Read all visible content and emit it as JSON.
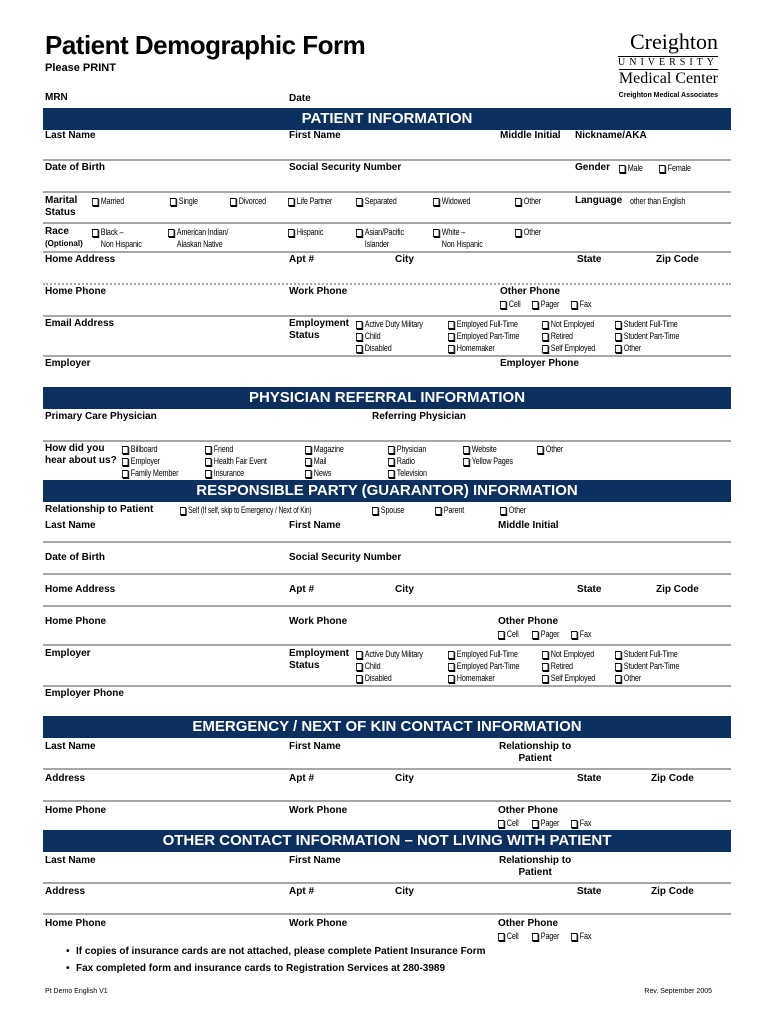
{
  "header": {
    "title": "Patient Demographic Form",
    "subtitle": "Please PRINT",
    "mrn": "MRN",
    "date": "Date",
    "logo": {
      "line1": "Creighton",
      "line2": "UNIVERSITY",
      "line3": "Medical Center",
      "line4": "Creighton Medical Associates"
    }
  },
  "patient": {
    "title": "PATIENT INFORMATION",
    "last_name": "Last Name",
    "first_name": "First Name",
    "middle_initial": "Middle Initial",
    "nickname": "Nickname/AKA",
    "dob": "Date of Birth",
    "ssn": "Social Security Number",
    "gender": "Gender",
    "male": "Male",
    "female": "Female",
    "marital": "Marital\nStatus",
    "marital_options": [
      "Married",
      "Single",
      "Divorced",
      "Life Partner",
      "Separated",
      "Widowed",
      "Other"
    ],
    "language_bold": "Language",
    "language_rest": "other than English",
    "race": "Race",
    "race_optional": "(Optional)",
    "race_options": [
      "Black –\n   Non Hispanic",
      "American Indian/\n   Alaskan Native",
      "Hispanic",
      "Asian/Pacific\n   Islander",
      "White –\n   Non Hispanic",
      "Other"
    ],
    "home_address": "Home Address",
    "apt": "Apt #",
    "city": "City",
    "state": "State",
    "zip": "Zip Code",
    "home_phone": "Home Phone",
    "work_phone": "Work Phone",
    "other_phone": "Other Phone",
    "phone_types": [
      "Cell",
      "Pager",
      "Fax"
    ],
    "email": "Email Address",
    "employment_status": "Employment\nStatus",
    "employment_options": [
      "Active Duty Military",
      "Child",
      "Disabled",
      "Employed Full-Time",
      "Employed Part-Time",
      "Homemaker",
      "Not Employed",
      "Retired",
      "Self Employed",
      "Student Full-Time",
      "Student Part-Time",
      "Other"
    ],
    "employer": "Employer",
    "employer_phone": "Employer Phone"
  },
  "physician": {
    "title": "PHYSICIAN REFERRAL INFORMATION",
    "primary": "Primary Care Physician",
    "referring": "Referring Physician",
    "how": "How did you\nhear about us?",
    "how_options": [
      "Billboard",
      "Employer",
      "Family Member",
      "Friend",
      "Health Fair Event",
      "Insurance",
      "Magazine",
      "Mail",
      "News",
      "Physician",
      "Radio",
      "Television",
      "Website",
      "Yellow Pages",
      "Other"
    ]
  },
  "responsible": {
    "title": "RESPONSIBLE PARTY (GUARANTOR) INFORMATION",
    "relationship": "Relationship to Patient",
    "rel_options": [
      "Self   (If self, skip to Emergency / Next of Kin)",
      "Spouse",
      "Parent",
      "Other"
    ],
    "last_name": "Last Name",
    "first_name": "First Name",
    "middle_initial": "Middle Initial",
    "dob": "Date of Birth",
    "ssn": "Social Security Number",
    "home_address": "Home Address",
    "apt": "Apt #",
    "city": "City",
    "state": "State",
    "zip": "Zip Code",
    "home_phone": "Home Phone",
    "work_phone": "Work Phone",
    "other_phone": "Other Phone",
    "employer": "Employer",
    "employment_status": "Employment\nStatus",
    "employer_phone": "Employer Phone"
  },
  "emergency": {
    "title": "EMERGENCY / NEXT OF KIN CONTACT INFORMATION",
    "last_name": "Last Name",
    "first_name": "First Name",
    "relationship": "Relationship to\n       Patient",
    "address": "Address",
    "apt": "Apt #",
    "city": "City",
    "state": "State",
    "zip": "Zip Code",
    "home_phone": "Home Phone",
    "work_phone": "Work Phone",
    "other_phone": "Other Phone"
  },
  "other_contact": {
    "title": "OTHER CONTACT INFORMATION – NOT LIVING WITH PATIENT",
    "last_name": "Last Name",
    "first_name": "First Name",
    "relationship": "Relationship to\n       Patient",
    "address": "Address",
    "apt": "Apt #",
    "city": "City",
    "state": "State",
    "zip": "Zip Code",
    "home_phone": "Home Phone",
    "work_phone": "Work Phone",
    "other_phone": "Other Phone"
  },
  "notes": [
    "If copies of insurance cards are not attached, please complete Patient Insurance Form",
    "Fax completed form and insurance cards to Registration Services at 280-3989"
  ],
  "footer": {
    "left": "Pt Demo English V1",
    "right": "Rev. September 2005"
  }
}
